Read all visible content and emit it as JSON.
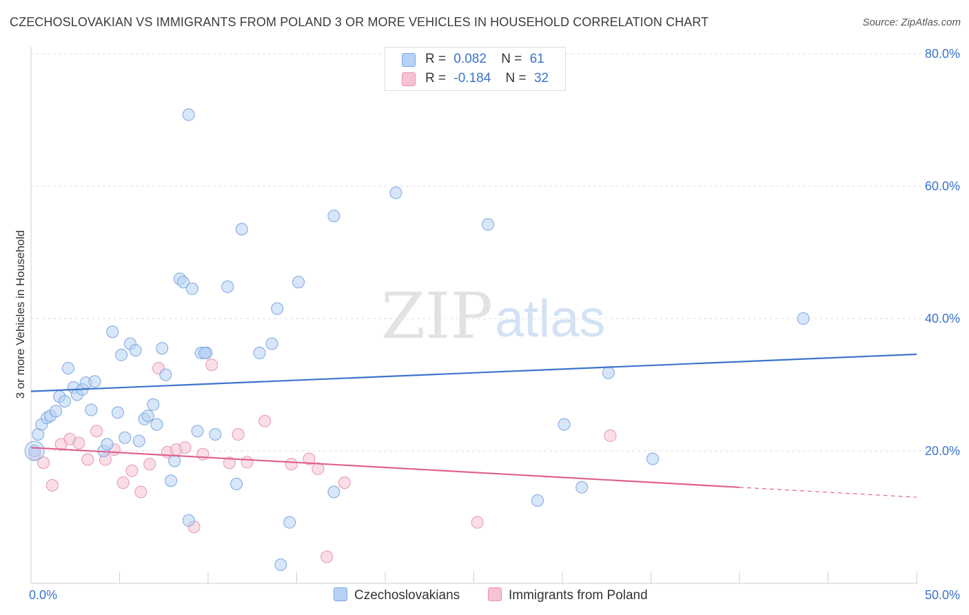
{
  "title": "CZECHOSLOVAKIAN VS IMMIGRANTS FROM POLAND 3 OR MORE VEHICLES IN HOUSEHOLD CORRELATION CHART",
  "source": "Source: ZipAtlas.com",
  "watermark": {
    "zip": "ZIP",
    "atlas": "atlas"
  },
  "colors": {
    "blue": "#3b74c9",
    "blue_fill": "#b7d2f4",
    "pink": "#e06090",
    "pink_fill": "#f6c3d3"
  },
  "legend": {
    "rows": [
      {
        "r_label": "R =",
        "r_value": "0.082",
        "n_label": "N =",
        "n_value": "61"
      },
      {
        "r_label": "R =",
        "r_value": "-0.184",
        "n_label": "N =",
        "n_value": "32"
      }
    ]
  },
  "chart_data": {
    "type": "scatter",
    "title": "CZECHOSLOVAKIAN VS IMMIGRANTS FROM POLAND 3 OR MORE VEHICLES IN HOUSEHOLD CORRELATION CHART",
    "xlabel": "",
    "ylabel": "3 or more Vehicles in Household",
    "xlim": [
      0,
      50
    ],
    "ylim": [
      0,
      80
    ],
    "x_tick_labels": [
      "0.0%",
      "50.0%"
    ],
    "y_ticks": [
      20,
      40,
      60,
      80
    ],
    "y_tick_labels": [
      "20.0%",
      "40.0%",
      "60.0%",
      "80.0%"
    ],
    "grid": true,
    "series": [
      {
        "name": "Czechoslovakians",
        "color": "#3b74c9",
        "r": 0.082,
        "n": 61,
        "trend": {
          "x": [
            0,
            50
          ],
          "y": [
            29.0,
            34.6
          ]
        },
        "points": [
          [
            0.2,
            20
          ],
          [
            0.4,
            22.5
          ],
          [
            0.6,
            24
          ],
          [
            0.9,
            25
          ],
          [
            1.1,
            25.3
          ],
          [
            1.4,
            26
          ],
          [
            1.6,
            28.2
          ],
          [
            1.9,
            27.5
          ],
          [
            2.1,
            32.5
          ],
          [
            2.4,
            29.6
          ],
          [
            2.6,
            28.5
          ],
          [
            2.9,
            29.3
          ],
          [
            3.1,
            30.3
          ],
          [
            3.6,
            30.5
          ],
          [
            3.4,
            26.2
          ],
          [
            4.1,
            20
          ],
          [
            4.3,
            21
          ],
          [
            4.6,
            38
          ],
          [
            4.9,
            25.8
          ],
          [
            5.1,
            34.5
          ],
          [
            5.3,
            22
          ],
          [
            5.6,
            36.2
          ],
          [
            5.9,
            35.2
          ],
          [
            6.1,
            21.5
          ],
          [
            6.4,
            24.8
          ],
          [
            6.6,
            25.3
          ],
          [
            6.9,
            27
          ],
          [
            7.1,
            24
          ],
          [
            7.4,
            35.5
          ],
          [
            7.6,
            31.5
          ],
          [
            7.9,
            15.5
          ],
          [
            8.1,
            18.5
          ],
          [
            8.4,
            46
          ],
          [
            8.6,
            45.5
          ],
          [
            9.1,
            44.5
          ],
          [
            8.9,
            9.5
          ],
          [
            9.4,
            23
          ],
          [
            9.6,
            34.8
          ],
          [
            9.9,
            34.8
          ],
          [
            10.4,
            22.5
          ],
          [
            11.1,
            44.8
          ],
          [
            11.6,
            15
          ],
          [
            11.9,
            53.5
          ],
          [
            12.9,
            34.8
          ],
          [
            13.6,
            36.2
          ],
          [
            13.9,
            41.5
          ],
          [
            14.6,
            9.2
          ],
          [
            15.1,
            45.5
          ],
          [
            14.1,
            2.8
          ],
          [
            17.1,
            55.5
          ],
          [
            17.1,
            13.8
          ],
          [
            20.6,
            59
          ],
          [
            25.8,
            54.2
          ],
          [
            28.6,
            12.5
          ],
          [
            30.1,
            24
          ],
          [
            31.1,
            14.5
          ],
          [
            32.6,
            31.8
          ],
          [
            35.1,
            18.8
          ],
          [
            43.6,
            40
          ],
          [
            8.9,
            70.8
          ],
          [
            9.8,
            34.8
          ]
        ]
      },
      {
        "name": "Immigrants from Poland",
        "color": "#e06090",
        "r": -0.184,
        "n": 32,
        "trend": {
          "x": [
            0,
            40
          ],
          "y": [
            20.5,
            14.5
          ],
          "dashed_to": {
            "x": 50,
            "y": 13
          }
        },
        "points": [
          [
            0.2,
            19.5
          ],
          [
            0.7,
            18.2
          ],
          [
            1.2,
            14.8
          ],
          [
            1.7,
            21
          ],
          [
            2.2,
            21.8
          ],
          [
            2.7,
            21.2
          ],
          [
            3.2,
            18.7
          ],
          [
            3.7,
            23
          ],
          [
            4.2,
            18.7
          ],
          [
            4.7,
            20.2
          ],
          [
            5.2,
            15.2
          ],
          [
            5.7,
            17
          ],
          [
            6.2,
            13.8
          ],
          [
            6.7,
            18
          ],
          [
            7.2,
            32.5
          ],
          [
            7.7,
            19.8
          ],
          [
            8.2,
            20.2
          ],
          [
            8.7,
            20.5
          ],
          [
            9.2,
            8.5
          ],
          [
            9.7,
            19.5
          ],
          [
            10.2,
            33
          ],
          [
            11.2,
            18.2
          ],
          [
            11.7,
            22.5
          ],
          [
            12.2,
            18.3
          ],
          [
            13.2,
            24.5
          ],
          [
            14.7,
            18
          ],
          [
            15.7,
            18.8
          ],
          [
            16.2,
            17.3
          ],
          [
            16.7,
            4
          ],
          [
            17.7,
            15.2
          ],
          [
            25.2,
            9.2
          ],
          [
            32.7,
            22.3
          ]
        ]
      }
    ]
  },
  "bottom_legend": [
    "Czechoslovakians",
    "Immigrants from Poland"
  ]
}
